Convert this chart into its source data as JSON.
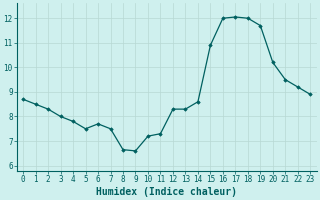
{
  "x": [
    0,
    1,
    2,
    3,
    4,
    5,
    6,
    7,
    8,
    9,
    10,
    11,
    12,
    13,
    14,
    15,
    16,
    17,
    18,
    19,
    20,
    21,
    22,
    23
  ],
  "y": [
    8.7,
    8.5,
    8.3,
    8.0,
    7.8,
    7.5,
    7.7,
    7.5,
    6.65,
    6.6,
    7.2,
    7.3,
    8.3,
    8.3,
    8.6,
    10.9,
    12.0,
    12.05,
    12.0,
    11.7,
    10.2,
    9.5,
    9.2,
    8.9
  ],
  "line_color": "#006060",
  "marker": "D",
  "marker_size": 1.8,
  "linewidth": 0.9,
  "xlabel": "Humidex (Indice chaleur)",
  "ylim": [
    5.8,
    12.6
  ],
  "xlim": [
    -0.5,
    23.5
  ],
  "yticks": [
    6,
    7,
    8,
    9,
    10,
    11,
    12
  ],
  "xticks": [
    0,
    1,
    2,
    3,
    4,
    5,
    6,
    7,
    8,
    9,
    10,
    11,
    12,
    13,
    14,
    15,
    16,
    17,
    18,
    19,
    20,
    21,
    22,
    23
  ],
  "bg_color": "#cff0ee",
  "grid_color": "#b8d8d4",
  "axis_color": "#006060",
  "tick_color": "#006060",
  "label_fontsize": 6.5,
  "tick_fontsize": 5.5,
  "xlabel_fontsize": 7
}
